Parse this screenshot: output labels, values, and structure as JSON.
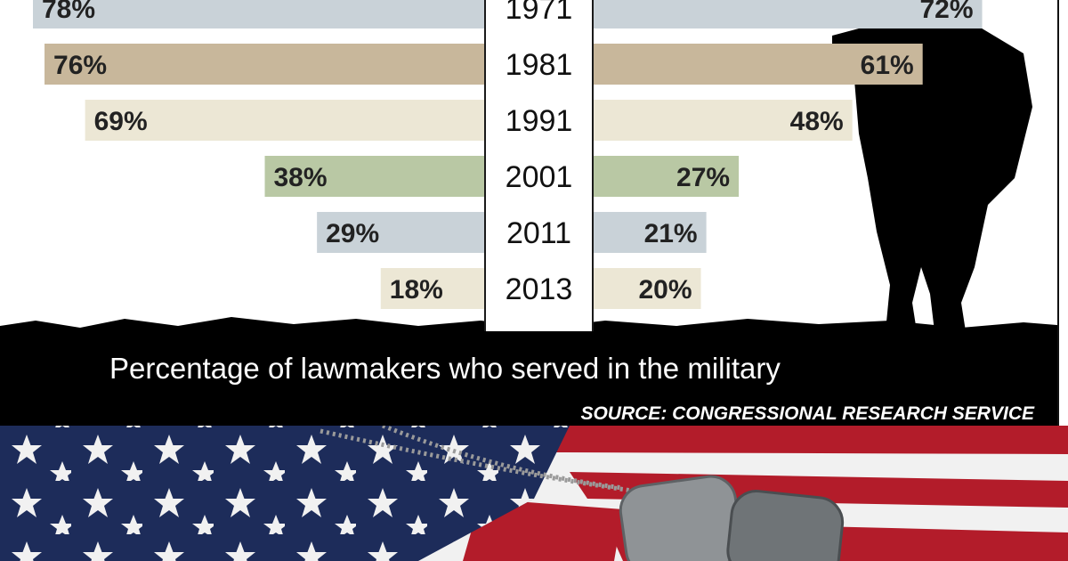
{
  "chart_data": {
    "type": "bar",
    "categories": [
      "1971",
      "1981",
      "1991",
      "2001",
      "2011",
      "2013"
    ],
    "series": [
      {
        "values": [
          78,
          76,
          69,
          38,
          29,
          18
        ]
      },
      {
        "values": [
          72,
          61,
          48,
          27,
          21,
          20
        ]
      }
    ],
    "value_labels_left": [
      "78%",
      "76%",
      "69%",
      "38%",
      "29%",
      "18%"
    ],
    "value_labels_right": [
      "72%",
      "61%",
      "48%",
      "27%",
      "21%",
      "20%"
    ],
    "title": "Percentage of lawmakers who served in the military",
    "source": "SOURCE: CONGRESSIONAL RESEARCH SERVICE",
    "orientation": "horizontal-butterfly",
    "xlim": [
      0,
      78
    ],
    "grid": false
  },
  "colors": {
    "row_1971": "#c9d2d8",
    "row_1981": "#c8b79b",
    "row_1991": "#ece7d5",
    "row_2001": "#b9c8a4",
    "row_2011": "#c9d2d8",
    "row_2013": "#ece7d5",
    "ground": "#000000",
    "flag_blue": "#1d2c5a",
    "flag_red": "#b31c2a",
    "flag_white": "#f1f1f1"
  },
  "icons": [
    "soldier-silhouette",
    "american-flag",
    "dog-tags"
  ]
}
